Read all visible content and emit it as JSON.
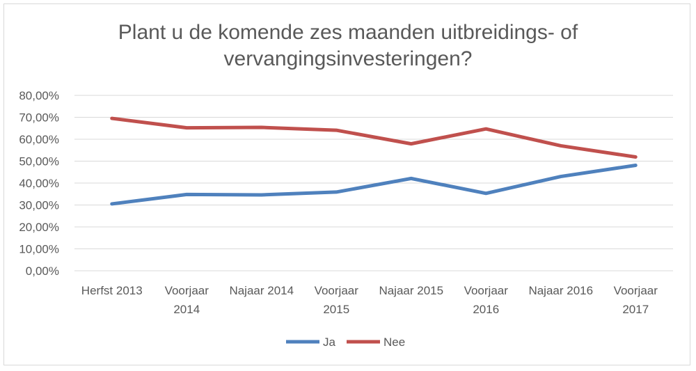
{
  "chart_data": {
    "type": "line",
    "title_lines": [
      "Plant u de komende zes maanden uitbreidings- of",
      "vervangingsinvesteringen?"
    ],
    "categories": [
      [
        "Herfst 2013"
      ],
      [
        "Voorjaar",
        "2014"
      ],
      [
        "Najaar 2014"
      ],
      [
        "Voorjaar",
        "2015"
      ],
      [
        "Najaar 2015"
      ],
      [
        "Voorjaar",
        "2016"
      ],
      [
        "Najaar 2016"
      ],
      [
        "Voorjaar",
        "2017"
      ]
    ],
    "ylim": [
      0,
      80
    ],
    "yticks": [
      0,
      10,
      20,
      30,
      40,
      50,
      60,
      70,
      80
    ],
    "ytick_labels": [
      "0,00%",
      "10,00%",
      "20,00%",
      "30,00%",
      "40,00%",
      "50,00%",
      "60,00%",
      "70,00%",
      "80,00%"
    ],
    "grid": true,
    "legend_position": "bottom",
    "series": [
      {
        "name": "Ja",
        "color": "#4f81bd",
        "values": [
          30.5,
          34.8,
          34.6,
          35.9,
          42.1,
          35.3,
          43.0,
          48.1
        ]
      },
      {
        "name": "Nee",
        "color": "#c0504d",
        "values": [
          69.5,
          65.2,
          65.4,
          64.1,
          57.9,
          64.7,
          57.0,
          51.9
        ]
      }
    ]
  }
}
